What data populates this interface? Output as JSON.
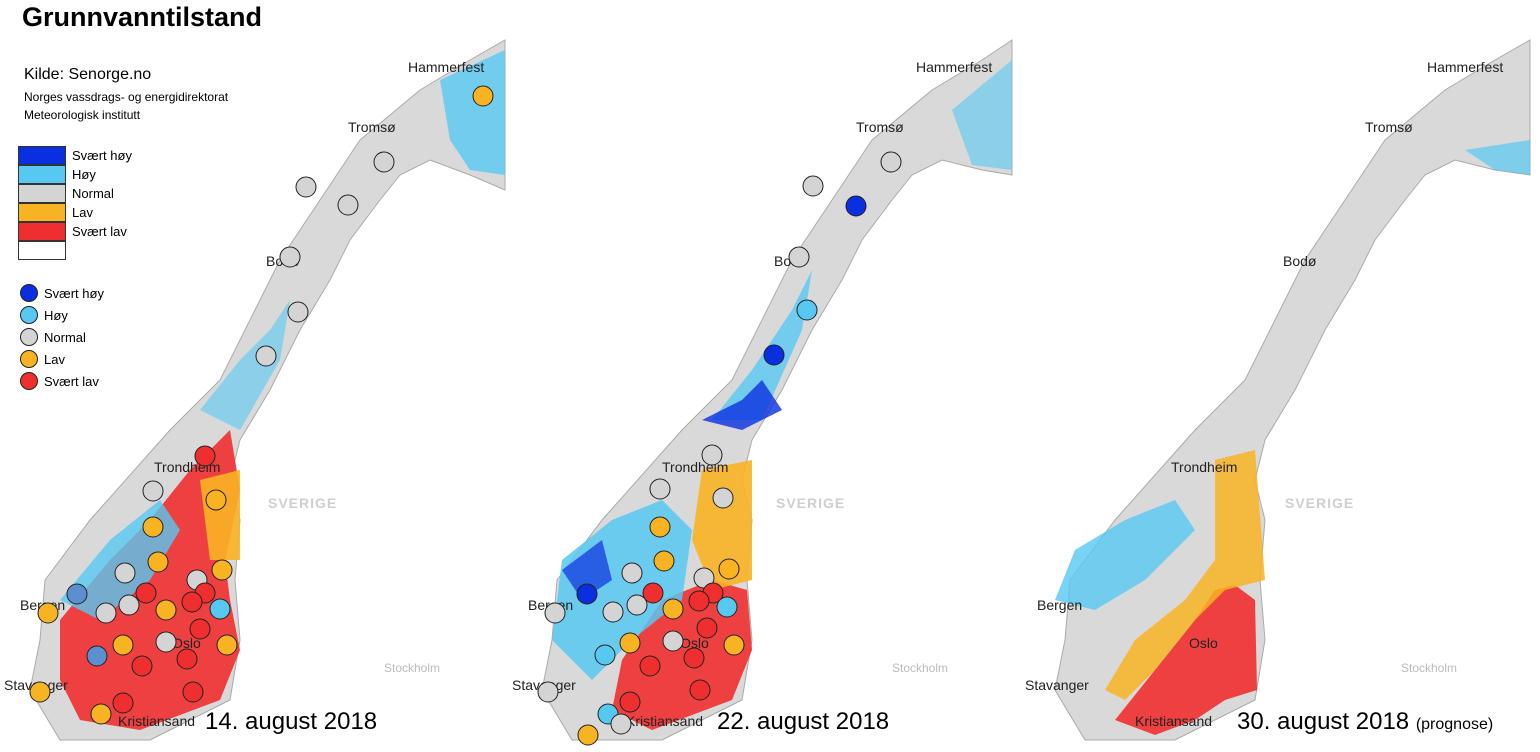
{
  "title": "Grunnvanntilstand",
  "source": "Kilde: Senorge.no",
  "organizations": [
    "Norges vassdrags- og energidirektorat",
    "Meteorologisk institutt"
  ],
  "colors": {
    "svaert_hoy": "#0a2fe0",
    "hoy": "#57c8f2",
    "normal": "#d4d4d4",
    "lav": "#f8b323",
    "svaert_lav": "#ef2f2f",
    "background_land": "#eeeeee"
  },
  "area_legend": [
    {
      "label": "Svært høy",
      "color": "#0a2fe0"
    },
    {
      "label": "Høy",
      "color": "#57c8f2"
    },
    {
      "label": "Normal",
      "color": "#d4d4d4"
    },
    {
      "label": "Lav",
      "color": "#f8b323"
    },
    {
      "label": "Svært lav",
      "color": "#ef2f2f"
    },
    {
      "label": "",
      "color": "#ffffff"
    }
  ],
  "station_legend": [
    {
      "label": "Svært høy",
      "color": "#0a2fe0"
    },
    {
      "label": "Høy",
      "color": "#57c8f2"
    },
    {
      "label": "Normal",
      "color": "#d4d4d4"
    },
    {
      "label": "Lav",
      "color": "#f8b323"
    },
    {
      "label": "Svært lav",
      "color": "#ef2f2f"
    }
  ],
  "panels": [
    {
      "date": "14. august 2018",
      "note": ""
    },
    {
      "date": "22. august 2018",
      "note": ""
    },
    {
      "date": "30. august 2018",
      "note": "(prognose)"
    }
  ],
  "cities": {
    "hammerfest": "Hammerfest",
    "tromso": "Tromsø",
    "bodo": "Bodø",
    "trondheim": "Trondheim",
    "bergen": "Bergen",
    "oslo": "Oslo",
    "stavanger": "Stavanger",
    "kristiansand": "Kristiansand",
    "stockholm": "Stockholm",
    "sverige": "SVERIGE"
  }
}
